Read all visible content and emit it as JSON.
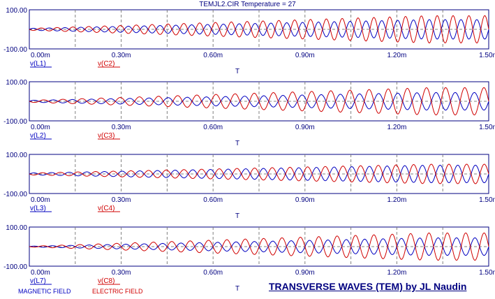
{
  "header": {
    "title": "TEMJL2.CIR Temperature = 27"
  },
  "colors": {
    "blue": "#0000c0",
    "red": "#d00000",
    "axis": "#000080",
    "grid": "#808080"
  },
  "footer": {
    "magnetic_label": "MAGNETIC FIELD",
    "electric_label": "ELECTRIC FIELD",
    "credit": "TRANSVERSE WAVES (TEM) by JL Naudin"
  },
  "chart_data": [
    {
      "type": "line",
      "ytick_labels": [
        "100.00",
        "-100.00"
      ],
      "xtick_labels": [
        "0.00m",
        "0.30m",
        "0.60m",
        "0.90m",
        "1.20m",
        "1.50m"
      ],
      "x_ticks": [
        0,
        0.3,
        0.6,
        0.9,
        1.2,
        1.5
      ],
      "xlim": [
        0,
        1.5
      ],
      "ylim": [
        -100,
        100
      ],
      "xlabel": "T",
      "grid": true,
      "series": [
        {
          "name": "v(L1)",
          "color": "#0000c0",
          "cycles": 29,
          "amp_start": 5,
          "amp_end": 50,
          "phase": 0
        },
        {
          "name": "v(C2)",
          "color": "#d00000",
          "cycles": 29,
          "amp_start": 5,
          "amp_end": 70,
          "phase": 180
        }
      ]
    },
    {
      "type": "line",
      "ytick_labels": [
        "100.00",
        "-100.00"
      ],
      "xtick_labels": [
        "0.00m",
        "0.30m",
        "0.60m",
        "0.90m",
        "1.20m",
        "1.50m"
      ],
      "x_ticks": [
        0,
        0.3,
        0.6,
        0.9,
        1.2,
        1.5
      ],
      "xlim": [
        0,
        1.5
      ],
      "ylim": [
        -100,
        100
      ],
      "xlabel": "T",
      "grid": true,
      "series": [
        {
          "name": "v(L2)",
          "color": "#0000c0",
          "cycles": 24,
          "amp_start": 5,
          "amp_end": 45,
          "phase": 0
        },
        {
          "name": "v(C3)",
          "color": "#d00000",
          "cycles": 24,
          "amp_start": 5,
          "amp_end": 70,
          "phase": 180
        }
      ]
    },
    {
      "type": "line",
      "ytick_labels": [
        "100.00",
        "-100.00"
      ],
      "xtick_labels": [
        "0.00m",
        "0.30m",
        "0.60m",
        "0.90m",
        "1.20m",
        "1.50m"
      ],
      "x_ticks": [
        0,
        0.3,
        0.6,
        0.9,
        1.2,
        1.5
      ],
      "xlim": [
        0,
        1.5
      ],
      "ylim": [
        -100,
        100
      ],
      "xlabel": "T",
      "grid": true,
      "series": [
        {
          "name": "v(L3)",
          "color": "#0000c0",
          "cycles": 26,
          "amp_start": 5,
          "amp_end": 45,
          "phase": 0
        },
        {
          "name": "v(C4)",
          "color": "#d00000",
          "cycles": 26,
          "amp_start": 5,
          "amp_end": 50,
          "phase": 180
        }
      ]
    },
    {
      "type": "line",
      "ytick_labels": [
        "100.00",
        "-100.00"
      ],
      "xtick_labels": [
        "0.00m",
        "0.30m",
        "0.60m",
        "0.90m",
        "1.20m",
        "1.50m"
      ],
      "x_ticks": [
        0,
        0.3,
        0.6,
        0.9,
        1.2,
        1.5
      ],
      "xlim": [
        0,
        1.5
      ],
      "ylim": [
        -100,
        100
      ],
      "xlabel": "T",
      "grid": true,
      "series": [
        {
          "name": "v(L7)",
          "color": "#0000c0",
          "cycles": 25,
          "amp_start": 2,
          "amp_end": 45,
          "phase": 0
        },
        {
          "name": "v(C8)",
          "color": "#d00000",
          "cycles": 25,
          "amp_start": 2,
          "amp_end": 70,
          "phase": 180
        }
      ]
    }
  ]
}
